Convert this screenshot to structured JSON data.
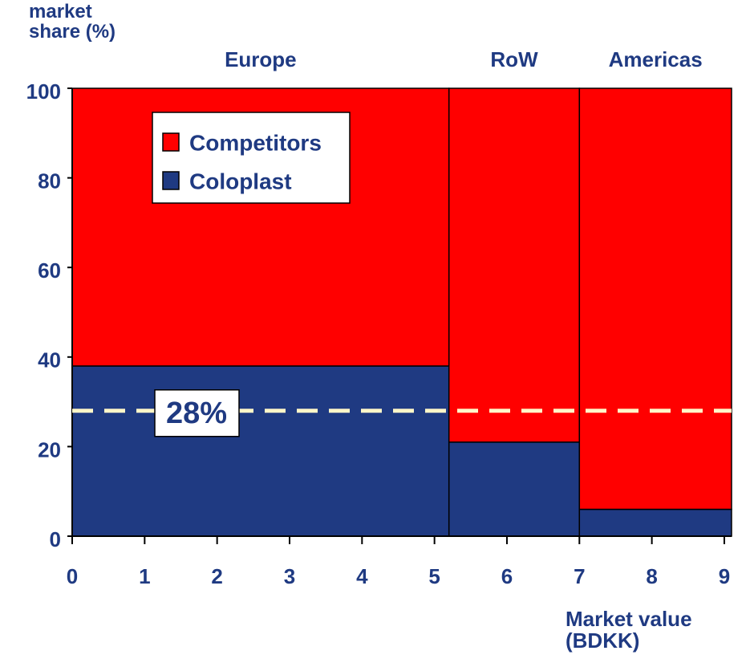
{
  "chart_data": {
    "type": "mekko",
    "y_label": "market share (%)",
    "x_label": "Market value (BDKK)",
    "categories": [
      "Europe",
      "RoW",
      "Americas"
    ],
    "widths": [
      5.2,
      1.8,
      2.1
    ],
    "series": [
      {
        "name": "Coloplast",
        "color": "#1f3a82",
        "values": [
          38,
          21,
          6
        ]
      },
      {
        "name": "Competitors",
        "color": "#ff0000",
        "values": [
          62,
          79,
          94
        ]
      }
    ],
    "reference_line": {
      "value": 28,
      "label": "28%",
      "color": "#fff6c8"
    },
    "xlim": [
      0,
      9.1
    ],
    "xticks": [
      0,
      1,
      2,
      3,
      4,
      5,
      6,
      7,
      8,
      9
    ],
    "ylim": [
      0,
      100
    ],
    "yticks": [
      0,
      20,
      40,
      60,
      80,
      100
    ],
    "legend": "upper-left"
  }
}
